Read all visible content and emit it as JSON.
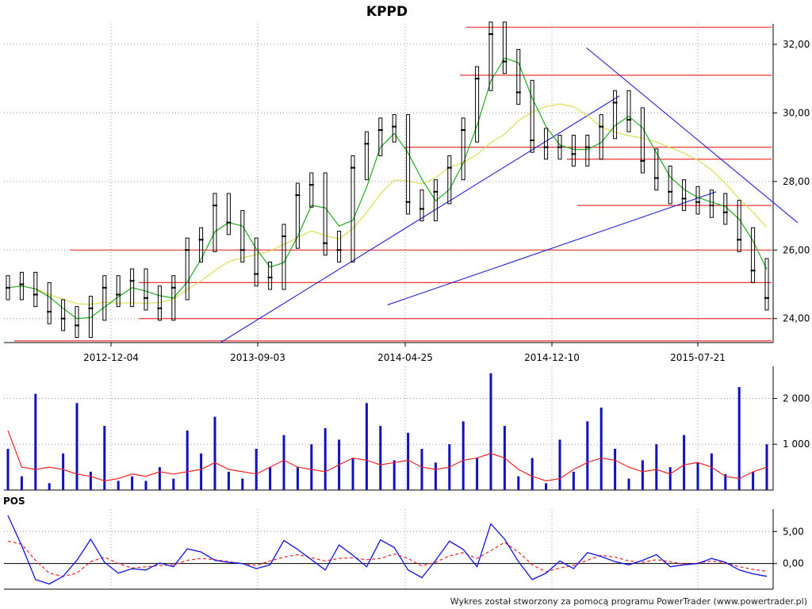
{
  "title": "KPPD",
  "footer": "Wykres został stworzony za pomocą programu PowerTrader (www.powertrader.pl)",
  "colors": {
    "price": "#000000",
    "ma_short": "#22aa22",
    "ma_long": "#dddd55",
    "hline": "#ee3333",
    "trend": "#2222cc",
    "volume": "#1111bb",
    "volume_ma": "#ee2222",
    "pos": "#1111dd",
    "pos_signal": "#ee2222"
  },
  "chart_data": [
    {
      "type": "line",
      "title": "KPPD",
      "x_ticks": [
        "2012-12-04",
        "2013-09-03",
        "2014-04-25",
        "2014-12-10",
        "2015-07-21"
      ],
      "y_ticks": [
        "24,00",
        "26,00",
        "28,00",
        "30,00",
        "32,00"
      ],
      "ylim": [
        23.3,
        32.6
      ],
      "grid": true,
      "close": [
        24.9,
        25.0,
        24.7,
        24.2,
        24.0,
        23.8,
        24.3,
        24.9,
        24.7,
        25.1,
        24.6,
        24.3,
        24.9,
        26.0,
        26.3,
        27.3,
        26.8,
        26.0,
        25.3,
        25.2,
        26.4,
        27.6,
        27.9,
        26.2,
        26.0,
        28.4,
        29.1,
        29.5,
        29.6,
        27.4,
        27.2,
        27.7,
        28.4,
        29.5,
        31.0,
        32.3,
        31.5,
        30.6,
        29.2,
        29.0,
        29.0,
        28.8,
        29.0,
        29.6,
        30.3,
        29.8,
        28.6,
        28.1,
        27.7,
        27.5,
        27.4,
        27.3,
        27.1,
        26.3,
        25.4,
        24.6
      ],
      "hlines": [
        32.5,
        31.1,
        29.0,
        28.65,
        27.3,
        26.0,
        25.05,
        24.0,
        23.35
      ],
      "trendlines": [
        {
          "from": [
            "2013-06-01",
            23.3
          ],
          "to": [
            "2015-03-15",
            30.5
          ]
        },
        {
          "from": [
            "2014-03-01",
            24.4
          ],
          "to": [
            "2015-08-20",
            27.7
          ]
        },
        {
          "from": [
            "2015-01-20",
            31.9
          ],
          "to": [
            "2015-12-31",
            26.8
          ]
        }
      ]
    },
    {
      "type": "bar",
      "y_ticks": [
        "1 000",
        "2 000"
      ],
      "ylim": [
        0,
        2700
      ],
      "volume": [
        900,
        300,
        2100,
        150,
        800,
        1900,
        400,
        1400,
        200,
        300,
        200,
        500,
        250,
        1300,
        800,
        1600,
        400,
        250,
        900,
        500,
        1200,
        500,
        1000,
        1350,
        1100,
        700,
        1900,
        1400,
        650,
        1250,
        900,
        600,
        1000,
        1500,
        700,
        2550,
        1400,
        300,
        700,
        150,
        1100,
        400,
        1500,
        1800,
        900,
        250,
        650,
        1000,
        500,
        1200,
        600,
        800,
        350,
        2250,
        400,
        1000
      ],
      "volume_ma": [
        1300,
        500,
        450,
        500,
        450,
        350,
        300,
        200,
        250,
        350,
        300,
        400,
        350,
        400,
        450,
        600,
        450,
        400,
        350,
        500,
        650,
        500,
        450,
        400,
        550,
        700,
        650,
        550,
        600,
        650,
        500,
        450,
        500,
        650,
        700,
        800,
        700,
        450,
        300,
        200,
        250,
        450,
        600,
        700,
        650,
        500,
        400,
        450,
        350,
        550,
        600,
        500,
        300,
        250,
        400,
        500
      ]
    },
    {
      "type": "line",
      "label": "POS",
      "y_ticks": [
        "0,00",
        "5,00"
      ],
      "ylim": [
        -4,
        8.5
      ],
      "pos": [
        7.5,
        2.8,
        -2.5,
        -3.2,
        -2.0,
        0.5,
        3.8,
        0.2,
        -1.5,
        -0.8,
        -1.0,
        0.1,
        -0.5,
        2.3,
        1.8,
        0.5,
        0.2,
        0.0,
        -0.8,
        -0.2,
        3.6,
        2.2,
        0.6,
        -1.0,
        2.9,
        1.3,
        -0.5,
        3.7,
        2.5,
        -1.0,
        -2.2,
        0.5,
        3.5,
        2.2,
        -0.5,
        6.2,
        3.8,
        0.3,
        -2.5,
        -1.5,
        0.4,
        -0.8,
        1.7,
        1.1,
        0.3,
        -0.2,
        0.5,
        1.4,
        -0.5,
        -0.2,
        0.0,
        0.8,
        0.2,
        -1.0,
        -1.6,
        -2.0
      ],
      "signal": [
        3.5,
        3.0,
        0.5,
        -1.5,
        -2.0,
        -1.5,
        0.3,
        1.0,
        0.0,
        -0.7,
        -0.5,
        -0.3,
        -0.2,
        0.5,
        0.8,
        0.6,
        0.3,
        0.0,
        -0.3,
        0.4,
        1.0,
        1.4,
        0.9,
        0.4,
        0.8,
        0.9,
        0.6,
        0.8,
        1.5,
        0.8,
        -0.4,
        0.2,
        1.2,
        1.7,
        0.8,
        2.0,
        3.3,
        1.8,
        -0.2,
        -1.3,
        -0.7,
        -0.3,
        0.5,
        1.3,
        1.0,
        0.4,
        0.2,
        0.6,
        0.3,
        -0.1,
        0.1,
        0.4,
        0.1,
        -0.5,
        -0.9,
        -1.2
      ]
    }
  ]
}
